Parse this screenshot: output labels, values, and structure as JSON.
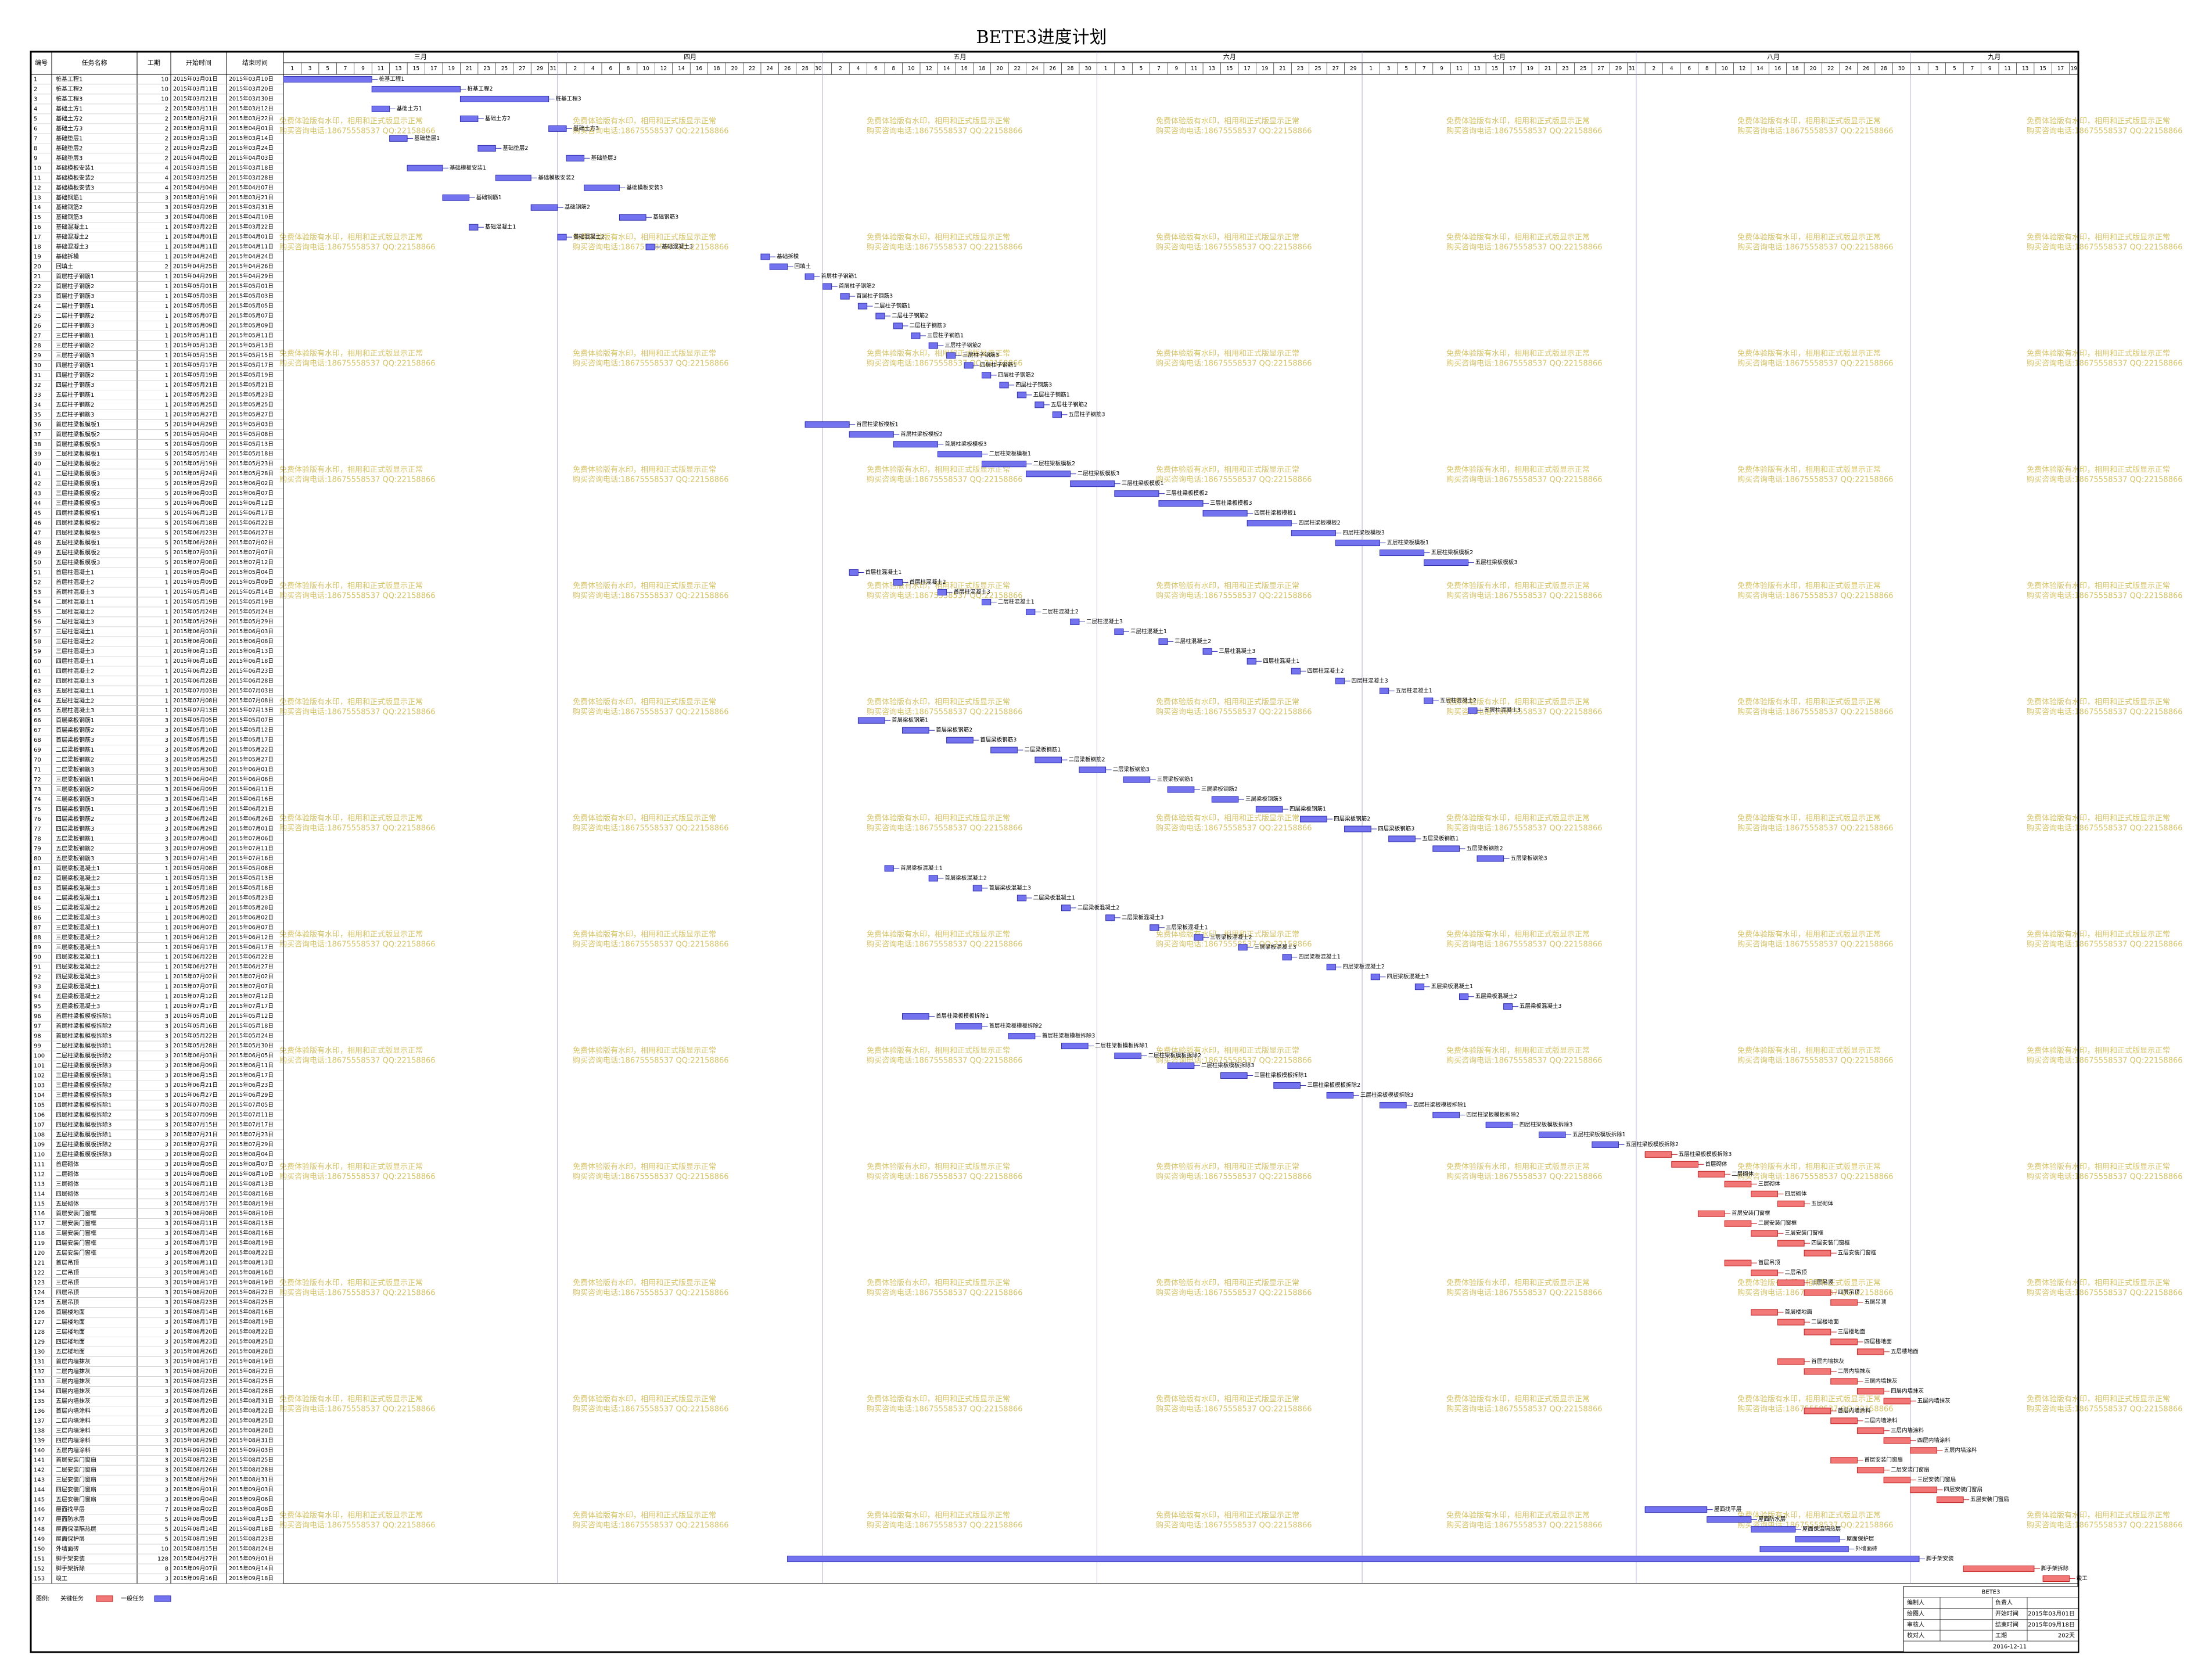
{
  "gantt": {
    "title": "BETE3进度计划",
    "columns": [
      "编号",
      "任务名称",
      "工期",
      "开始时间",
      "结束时间"
    ],
    "xlim": [
      "2015-03-01",
      "2015-09-20"
    ],
    "months": [
      {
        "label": "三月",
        "days": [
          1,
          3,
          5,
          7,
          9,
          11,
          13,
          15,
          17,
          19,
          21,
          23,
          25,
          27,
          29,
          31
        ]
      },
      {
        "label": "四月",
        "days": [
          2,
          4,
          6,
          8,
          10,
          12,
          14,
          16,
          18,
          20,
          22,
          24,
          26,
          28,
          30
        ]
      },
      {
        "label": "五月",
        "days": [
          2,
          4,
          6,
          8,
          10,
          12,
          14,
          16,
          18,
          20,
          22,
          24,
          26,
          28,
          30
        ]
      },
      {
        "label": "六月",
        "days": [
          1,
          3,
          5,
          7,
          9,
          11,
          13,
          15,
          17,
          19,
          21,
          23,
          25,
          27,
          29
        ]
      },
      {
        "label": "七月",
        "days": [
          1,
          3,
          5,
          7,
          9,
          11,
          13,
          15,
          17,
          19,
          21,
          23,
          25,
          27,
          29,
          31
        ]
      },
      {
        "label": "八月",
        "days": [
          2,
          4,
          6,
          8,
          10,
          12,
          14,
          16,
          18,
          20,
          22,
          24,
          26,
          28,
          30
        ]
      },
      {
        "label": "九月",
        "days": [
          1,
          3,
          5,
          7,
          9,
          11,
          13,
          15,
          17,
          19
        ]
      }
    ],
    "colors": {
      "normal": "#7373ef",
      "normal_edge": "#2f2fb0",
      "critical": "#f27777",
      "critical_edge": "#c02020"
    },
    "critical": [
      110,
      111,
      112,
      113,
      114,
      115,
      116,
      117,
      118,
      119,
      120,
      121,
      122,
      123,
      124,
      125,
      126,
      127,
      128,
      129,
      130,
      131,
      132,
      133,
      134,
      135,
      136,
      137,
      138,
      139,
      140,
      141,
      142,
      143,
      144,
      145,
      152,
      153
    ],
    "rows": [
      [
        1,
        "桩基工程1",
        10,
        "2015年03月01日",
        "2015年03月10日"
      ],
      [
        2,
        "桩基工程2",
        10,
        "2015年03月11日",
        "2015年03月20日"
      ],
      [
        3,
        "桩基工程3",
        10,
        "2015年03月21日",
        "2015年03月30日"
      ],
      [
        4,
        "基础土方1",
        2,
        "2015年03月11日",
        "2015年03月12日"
      ],
      [
        5,
        "基础土方2",
        2,
        "2015年03月21日",
        "2015年03月22日"
      ],
      [
        6,
        "基础土方3",
        2,
        "2015年03月31日",
        "2015年04月01日"
      ],
      [
        7,
        "基础垫层1",
        2,
        "2015年03月13日",
        "2015年03月14日"
      ],
      [
        8,
        "基础垫层2",
        2,
        "2015年03月23日",
        "2015年03月24日"
      ],
      [
        9,
        "基础垫层3",
        2,
        "2015年04月02日",
        "2015年04月03日"
      ],
      [
        10,
        "基础模板安装1",
        4,
        "2015年03月15日",
        "2015年03月18日"
      ],
      [
        11,
        "基础模板安装2",
        4,
        "2015年03月25日",
        "2015年03月28日"
      ],
      [
        12,
        "基础模板安装3",
        4,
        "2015年04月04日",
        "2015年04月07日"
      ],
      [
        13,
        "基础钢筋1",
        3,
        "2015年03月19日",
        "2015年03月21日"
      ],
      [
        14,
        "基础钢筋2",
        3,
        "2015年03月29日",
        "2015年03月31日"
      ],
      [
        15,
        "基础钢筋3",
        3,
        "2015年04月08日",
        "2015年04月10日"
      ],
      [
        16,
        "基础混凝土1",
        1,
        "2015年03月22日",
        "2015年03月22日"
      ],
      [
        17,
        "基础混凝土2",
        1,
        "2015年04月01日",
        "2015年04月01日"
      ],
      [
        18,
        "基础混凝土3",
        1,
        "2015年04月11日",
        "2015年04月11日"
      ],
      [
        19,
        "基础拆模",
        1,
        "2015年04月24日",
        "2015年04月24日"
      ],
      [
        20,
        "回填土",
        2,
        "2015年04月25日",
        "2015年04月26日"
      ],
      [
        21,
        "首层柱子钢筋1",
        1,
        "2015年04月29日",
        "2015年04月29日"
      ],
      [
        22,
        "首层柱子钢筋2",
        1,
        "2015年05月01日",
        "2015年05月01日"
      ],
      [
        23,
        "首层柱子钢筋3",
        1,
        "2015年05月03日",
        "2015年05月03日"
      ],
      [
        24,
        "二层柱子钢筋1",
        1,
        "2015年05月05日",
        "2015年05月05日"
      ],
      [
        25,
        "二层柱子钢筋2",
        1,
        "2015年05月07日",
        "2015年05月07日"
      ],
      [
        26,
        "二层柱子钢筋3",
        1,
        "2015年05月09日",
        "2015年05月09日"
      ],
      [
        27,
        "三层柱子钢筋1",
        1,
        "2015年05月11日",
        "2015年05月11日"
      ],
      [
        28,
        "三层柱子钢筋2",
        1,
        "2015年05月13日",
        "2015年05月13日"
      ],
      [
        29,
        "三层柱子钢筋3",
        1,
        "2015年05月15日",
        "2015年05月15日"
      ],
      [
        30,
        "四层柱子钢筋1",
        1,
        "2015年05月17日",
        "2015年05月17日"
      ],
      [
        31,
        "四层柱子钢筋2",
        1,
        "2015年05月19日",
        "2015年05月19日"
      ],
      [
        32,
        "四层柱子钢筋3",
        1,
        "2015年05月21日",
        "2015年05月21日"
      ],
      [
        33,
        "五层柱子钢筋1",
        1,
        "2015年05月23日",
        "2015年05月23日"
      ],
      [
        34,
        "五层柱子钢筋2",
        1,
        "2015年05月25日",
        "2015年05月25日"
      ],
      [
        35,
        "五层柱子钢筋3",
        1,
        "2015年05月27日",
        "2015年05月27日"
      ],
      [
        36,
        "首层柱梁板模板1",
        5,
        "2015年04月29日",
        "2015年05月03日"
      ],
      [
        37,
        "首层柱梁板模板2",
        5,
        "2015年05月04日",
        "2015年05月08日"
      ],
      [
        38,
        "首层柱梁板模板3",
        5,
        "2015年05月09日",
        "2015年05月13日"
      ],
      [
        39,
        "二层柱梁板模板1",
        5,
        "2015年05月14日",
        "2015年05月18日"
      ],
      [
        40,
        "二层柱梁板模板2",
        5,
        "2015年05月19日",
        "2015年05月23日"
      ],
      [
        41,
        "二层柱梁板模板3",
        5,
        "2015年05月24日",
        "2015年05月28日"
      ],
      [
        42,
        "三层柱梁板模板1",
        5,
        "2015年05月29日",
        "2015年06月02日"
      ],
      [
        43,
        "三层柱梁板模板2",
        5,
        "2015年06月03日",
        "2015年06月07日"
      ],
      [
        44,
        "三层柱梁板模板3",
        5,
        "2015年06月08日",
        "2015年06月12日"
      ],
      [
        45,
        "四层柱梁板模板1",
        5,
        "2015年06月13日",
        "2015年06月17日"
      ],
      [
        46,
        "四层柱梁板模板2",
        5,
        "2015年06月18日",
        "2015年06月22日"
      ],
      [
        47,
        "四层柱梁板模板3",
        5,
        "2015年06月23日",
        "2015年06月27日"
      ],
      [
        48,
        "五层柱梁板模板1",
        5,
        "2015年06月28日",
        "2015年07月02日"
      ],
      [
        49,
        "五层柱梁板模板2",
        5,
        "2015年07月03日",
        "2015年07月07日"
      ],
      [
        50,
        "五层柱梁板模板3",
        5,
        "2015年07月08日",
        "2015年07月12日"
      ],
      [
        51,
        "首层柱混凝土1",
        1,
        "2015年05月04日",
        "2015年05月04日"
      ],
      [
        52,
        "首层柱混凝土2",
        1,
        "2015年05月09日",
        "2015年05月09日"
      ],
      [
        53,
        "首层柱混凝土3",
        1,
        "2015年05月14日",
        "2015年05月14日"
      ],
      [
        54,
        "二层柱混凝土1",
        1,
        "2015年05月19日",
        "2015年05月19日"
      ],
      [
        55,
        "二层柱混凝土2",
        1,
        "2015年05月24日",
        "2015年05月24日"
      ],
      [
        56,
        "二层柱混凝土3",
        1,
        "2015年05月29日",
        "2015年05月29日"
      ],
      [
        57,
        "三层柱混凝土1",
        1,
        "2015年06月03日",
        "2015年06月03日"
      ],
      [
        58,
        "三层柱混凝土2",
        1,
        "2015年06月08日",
        "2015年06月08日"
      ],
      [
        59,
        "三层柱混凝土3",
        1,
        "2015年06月13日",
        "2015年06月13日"
      ],
      [
        60,
        "四层柱混凝土1",
        1,
        "2015年06月18日",
        "2015年06月18日"
      ],
      [
        61,
        "四层柱混凝土2",
        1,
        "2015年06月23日",
        "2015年06月23日"
      ],
      [
        62,
        "四层柱混凝土3",
        1,
        "2015年06月28日",
        "2015年06月28日"
      ],
      [
        63,
        "五层柱混凝土1",
        1,
        "2015年07月03日",
        "2015年07月03日"
      ],
      [
        64,
        "五层柱混凝土2",
        1,
        "2015年07月08日",
        "2015年07月08日"
      ],
      [
        65,
        "五层柱混凝土3",
        1,
        "2015年07月13日",
        "2015年07月13日"
      ],
      [
        66,
        "首层梁板钢筋1",
        3,
        "2015年05月05日",
        "2015年05月07日"
      ],
      [
        67,
        "首层梁板钢筋2",
        3,
        "2015年05月10日",
        "2015年05月12日"
      ],
      [
        68,
        "首层梁板钢筋3",
        3,
        "2015年05月15日",
        "2015年05月17日"
      ],
      [
        69,
        "二层梁板钢筋1",
        3,
        "2015年05月20日",
        "2015年05月22日"
      ],
      [
        70,
        "二层梁板钢筋2",
        3,
        "2015年05月25日",
        "2015年05月27日"
      ],
      [
        71,
        "二层梁板钢筋3",
        3,
        "2015年05月30日",
        "2015年06月01日"
      ],
      [
        72,
        "三层梁板钢筋1",
        3,
        "2015年06月04日",
        "2015年06月06日"
      ],
      [
        73,
        "三层梁板钢筋2",
        3,
        "2015年06月09日",
        "2015年06月11日"
      ],
      [
        74,
        "三层梁板钢筋3",
        3,
        "2015年06月14日",
        "2015年06月16日"
      ],
      [
        75,
        "四层梁板钢筋1",
        3,
        "2015年06月19日",
        "2015年06月21日"
      ],
      [
        76,
        "四层梁板钢筋2",
        3,
        "2015年06月24日",
        "2015年06月26日"
      ],
      [
        77,
        "四层梁板钢筋3",
        3,
        "2015年06月29日",
        "2015年07月01日"
      ],
      [
        78,
        "五层梁板钢筋1",
        3,
        "2015年07月04日",
        "2015年07月06日"
      ],
      [
        79,
        "五层梁板钢筋2",
        3,
        "2015年07月09日",
        "2015年07月11日"
      ],
      [
        80,
        "五层梁板钢筋3",
        3,
        "2015年07月14日",
        "2015年07月16日"
      ],
      [
        81,
        "首层梁板混凝土1",
        1,
        "2015年05月08日",
        "2015年05月08日"
      ],
      [
        82,
        "首层梁板混凝土2",
        1,
        "2015年05月13日",
        "2015年05月13日"
      ],
      [
        83,
        "首层梁板混凝土3",
        1,
        "2015年05月18日",
        "2015年05月18日"
      ],
      [
        84,
        "二层梁板混凝土1",
        1,
        "2015年05月23日",
        "2015年05月23日"
      ],
      [
        85,
        "二层梁板混凝土2",
        1,
        "2015年05月28日",
        "2015年05月28日"
      ],
      [
        86,
        "二层梁板混凝土3",
        1,
        "2015年06月02日",
        "2015年06月02日"
      ],
      [
        87,
        "三层梁板混凝土1",
        1,
        "2015年06月07日",
        "2015年06月07日"
      ],
      [
        88,
        "三层梁板混凝土2",
        1,
        "2015年06月12日",
        "2015年06月12日"
      ],
      [
        89,
        "三层梁板混凝土3",
        1,
        "2015年06月17日",
        "2015年06月17日"
      ],
      [
        90,
        "四层梁板混凝土1",
        1,
        "2015年06月22日",
        "2015年06月22日"
      ],
      [
        91,
        "四层梁板混凝土2",
        1,
        "2015年06月27日",
        "2015年06月27日"
      ],
      [
        92,
        "四层梁板混凝土3",
        1,
        "2015年07月02日",
        "2015年07月02日"
      ],
      [
        93,
        "五层梁板混凝土1",
        1,
        "2015年07月07日",
        "2015年07月07日"
      ],
      [
        94,
        "五层梁板混凝土2",
        1,
        "2015年07月12日",
        "2015年07月12日"
      ],
      [
        95,
        "五层梁板混凝土3",
        1,
        "2015年07月17日",
        "2015年07月17日"
      ],
      [
        96,
        "首层柱梁板模板拆除1",
        3,
        "2015年05月10日",
        "2015年05月12日"
      ],
      [
        97,
        "首层柱梁板模板拆除2",
        3,
        "2015年05月16日",
        "2015年05月18日"
      ],
      [
        98,
        "首层柱梁板模板拆除3",
        3,
        "2015年05月22日",
        "2015年05月24日"
      ],
      [
        99,
        "二层柱梁板模板拆除1",
        3,
        "2015年05月28日",
        "2015年05月30日"
      ],
      [
        100,
        "二层柱梁板模板拆除2",
        3,
        "2015年06月03日",
        "2015年06月05日"
      ],
      [
        101,
        "二层柱梁板模板拆除3",
        3,
        "2015年06月09日",
        "2015年06月11日"
      ],
      [
        102,
        "三层柱梁板模板拆除1",
        3,
        "2015年06月15日",
        "2015年06月17日"
      ],
      [
        103,
        "三层柱梁板模板拆除2",
        3,
        "2015年06月21日",
        "2015年06月23日"
      ],
      [
        104,
        "三层柱梁板模板拆除3",
        3,
        "2015年06月27日",
        "2015年06月29日"
      ],
      [
        105,
        "四层柱梁板模板拆除1",
        3,
        "2015年07月03日",
        "2015年07月05日"
      ],
      [
        106,
        "四层柱梁板模板拆除2",
        3,
        "2015年07月09日",
        "2015年07月11日"
      ],
      [
        107,
        "四层柱梁板模板拆除3",
        3,
        "2015年07月15日",
        "2015年07月17日"
      ],
      [
        108,
        "五层柱梁板模板拆除1",
        3,
        "2015年07月21日",
        "2015年07月23日"
      ],
      [
        109,
        "五层柱梁板模板拆除2",
        3,
        "2015年07月27日",
        "2015年07月29日"
      ],
      [
        110,
        "五层柱梁板模板拆除3",
        3,
        "2015年08月02日",
        "2015年08月04日"
      ],
      [
        111,
        "首层砌体",
        3,
        "2015年08月05日",
        "2015年08月07日"
      ],
      [
        112,
        "二层砌体",
        3,
        "2015年08月08日",
        "2015年08月10日"
      ],
      [
        113,
        "三层砌体",
        3,
        "2015年08月11日",
        "2015年08月13日"
      ],
      [
        114,
        "四层砌体",
        3,
        "2015年08月14日",
        "2015年08月16日"
      ],
      [
        115,
        "五层砌体",
        3,
        "2015年08月17日",
        "2015年08月19日"
      ],
      [
        116,
        "首层安装门窗框",
        3,
        "2015年08月08日",
        "2015年08月10日"
      ],
      [
        117,
        "二层安装门窗框",
        3,
        "2015年08月11日",
        "2015年08月13日"
      ],
      [
        118,
        "三层安装门窗框",
        3,
        "2015年08月14日",
        "2015年08月16日"
      ],
      [
        119,
        "四层安装门窗框",
        3,
        "2015年08月17日",
        "2015年08月19日"
      ],
      [
        120,
        "五层安装门窗框",
        3,
        "2015年08月20日",
        "2015年08月22日"
      ],
      [
        121,
        "首层吊顶",
        3,
        "2015年08月11日",
        "2015年08月13日"
      ],
      [
        122,
        "二层吊顶",
        3,
        "2015年08月14日",
        "2015年08月16日"
      ],
      [
        123,
        "三层吊顶",
        3,
        "2015年08月17日",
        "2015年08月19日"
      ],
      [
        124,
        "四层吊顶",
        3,
        "2015年08月20日",
        "2015年08月22日"
      ],
      [
        125,
        "五层吊顶",
        3,
        "2015年08月23日",
        "2015年08月25日"
      ],
      [
        126,
        "首层楼地面",
        3,
        "2015年08月14日",
        "2015年08月16日"
      ],
      [
        127,
        "二层楼地面",
        3,
        "2015年08月17日",
        "2015年08月19日"
      ],
      [
        128,
        "三层楼地面",
        3,
        "2015年08月20日",
        "2015年08月22日"
      ],
      [
        129,
        "四层楼地面",
        3,
        "2015年08月23日",
        "2015年08月25日"
      ],
      [
        130,
        "五层楼地面",
        3,
        "2015年08月26日",
        "2015年08月28日"
      ],
      [
        131,
        "首层内墙抹灰",
        3,
        "2015年08月17日",
        "2015年08月19日"
      ],
      [
        132,
        "二层内墙抹灰",
        3,
        "2015年08月20日",
        "2015年08月22日"
      ],
      [
        133,
        "三层内墙抹灰",
        3,
        "2015年08月23日",
        "2015年08月25日"
      ],
      [
        134,
        "四层内墙抹灰",
        3,
        "2015年08月26日",
        "2015年08月28日"
      ],
      [
        135,
        "五层内墙抹灰",
        3,
        "2015年08月29日",
        "2015年08月31日"
      ],
      [
        136,
        "首层内墙涂料",
        3,
        "2015年08月20日",
        "2015年08月22日"
      ],
      [
        137,
        "二层内墙涂料",
        3,
        "2015年08月23日",
        "2015年08月25日"
      ],
      [
        138,
        "三层内墙涂料",
        3,
        "2015年08月26日",
        "2015年08月28日"
      ],
      [
        139,
        "四层内墙涂料",
        3,
        "2015年08月29日",
        "2015年08月31日"
      ],
      [
        140,
        "五层内墙涂料",
        3,
        "2015年09月01日",
        "2015年09月03日"
      ],
      [
        141,
        "首层安装门窗扇",
        3,
        "2015年08月23日",
        "2015年08月25日"
      ],
      [
        142,
        "二层安装门窗扇",
        3,
        "2015年08月26日",
        "2015年08月28日"
      ],
      [
        143,
        "三层安装门窗扇",
        3,
        "2015年08月29日",
        "2015年08月31日"
      ],
      [
        144,
        "四层安装门窗扇",
        3,
        "2015年09月01日",
        "2015年09月03日"
      ],
      [
        145,
        "五层安装门窗扇",
        3,
        "2015年09月04日",
        "2015年09月06日"
      ],
      [
        146,
        "屋面找平层",
        7,
        "2015年08月02日",
        "2015年08月08日"
      ],
      [
        147,
        "屋面防水层",
        5,
        "2015年08月09日",
        "2015年08月13日"
      ],
      [
        148,
        "屋面保温隔热层",
        5,
        "2015年08月14日",
        "2015年08月18日"
      ],
      [
        149,
        "屋面保护层",
        5,
        "2015年08月19日",
        "2015年08月23日"
      ],
      [
        150,
        "外墙面砖",
        10,
        "2015年08月15日",
        "2015年08月24日"
      ],
      [
        151,
        "脚手架安装",
        128,
        "2015年04月27日",
        "2015年09月01日"
      ],
      [
        152,
        "脚手架拆除",
        8,
        "2015年09月07日",
        "2015年09月14日"
      ],
      [
        153,
        "竣工",
        3,
        "2015年09月16日",
        "2015年09月18日"
      ]
    ],
    "watermark": [
      "免费体验版有水印，相用和正式版显示正常",
      "购买咨询电话:18675558537 QQ:22158866"
    ],
    "legend": {
      "title": "图例:",
      "critical": "关键任务",
      "normal": "一般任务"
    },
    "info": {
      "title": "BETE3",
      "people": [
        "编制人",
        "绘图人",
        "审核人",
        "校对人"
      ],
      "fields": [
        {
          "label": "负责人"
        },
        {
          "label": "开始时间",
          "value": "2015年03月01日"
        },
        {
          "label": "结束时间",
          "value": "2015年09月18日"
        },
        {
          "label": "工期",
          "value": "202天"
        }
      ],
      "date": "2016-12-11"
    }
  }
}
